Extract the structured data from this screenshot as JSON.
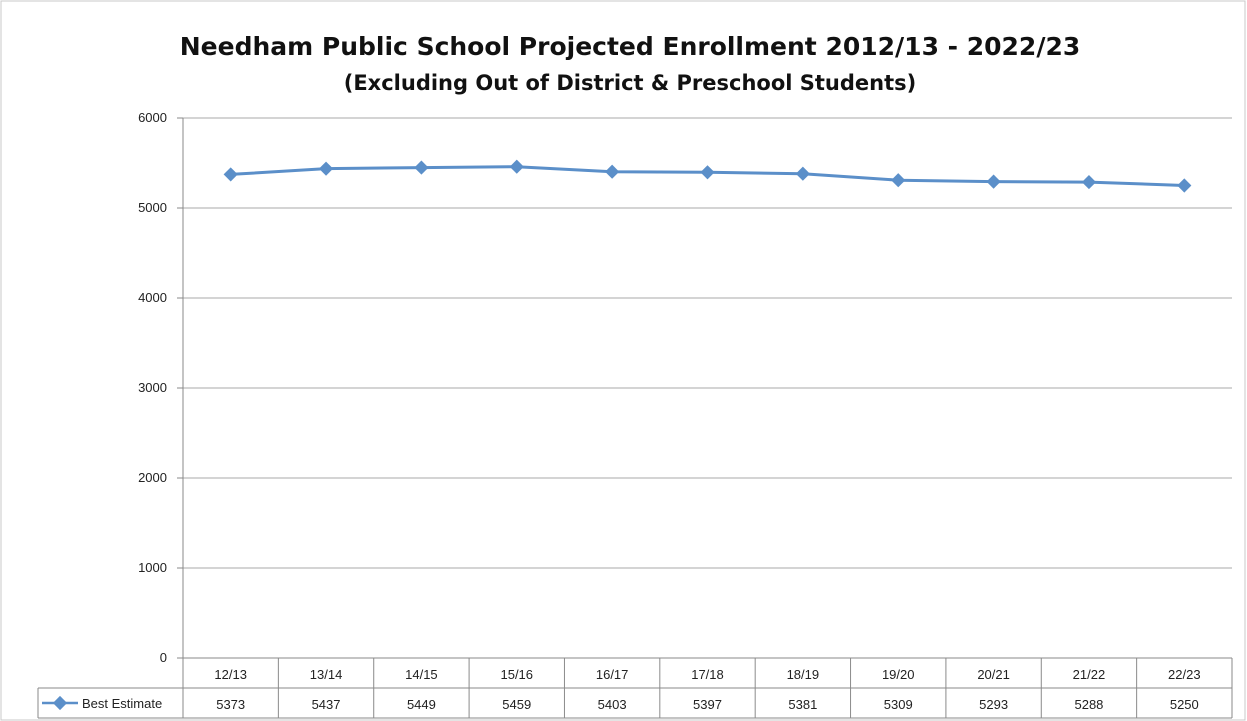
{
  "chart_data": {
    "type": "line",
    "title": "Needham Public School Projected Enrollment 2012/13 - 2022/23",
    "subtitle": "(Excluding Out of District & Preschool Students)",
    "categories": [
      "12/13",
      "13/14",
      "14/15",
      "15/16",
      "16/17",
      "17/18",
      "18/19",
      "19/20",
      "20/21",
      "21/22",
      "22/23"
    ],
    "series": [
      {
        "name": "Best Estimate",
        "values": [
          5373,
          5437,
          5449,
          5459,
          5403,
          5397,
          5381,
          5309,
          5293,
          5288,
          5250
        ],
        "color": "#5b8fc9"
      }
    ],
    "ylim": [
      0,
      6000
    ],
    "yticks": [
      0,
      1000,
      2000,
      3000,
      4000,
      5000,
      6000
    ],
    "grid": true,
    "legend": "data-table-left",
    "data_table": true
  }
}
